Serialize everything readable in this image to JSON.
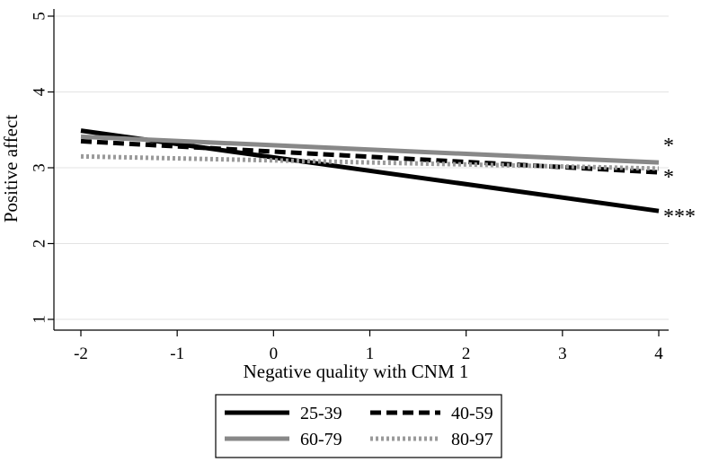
{
  "chart_data": {
    "type": "line",
    "title": "",
    "xlabel": "Negative quality with CNM 1",
    "ylabel": "Positive affect",
    "xlim": [
      -2,
      4
    ],
    "ylim": [
      1,
      5
    ],
    "xticks": [
      "-2",
      "-1",
      "0",
      "1",
      "2",
      "3",
      "4"
    ],
    "yticks": [
      "1",
      "2",
      "3",
      "4",
      "5"
    ],
    "grid": true,
    "legend_position": "bottom",
    "x": [
      -2,
      4
    ],
    "series": [
      {
        "name": "25-39",
        "values": [
          3.49,
          2.43
        ],
        "color": "#000000",
        "dash": "solid",
        "annotation": "***"
      },
      {
        "name": "40-59",
        "values": [
          3.35,
          2.94
        ],
        "color": "#000000",
        "dash": "dashed",
        "annotation": "*"
      },
      {
        "name": "60-79",
        "values": [
          3.41,
          3.07
        ],
        "color": "#888888",
        "dash": "solid",
        "annotation": "*"
      },
      {
        "name": "80-97",
        "values": [
          3.15,
          2.99
        ],
        "color": "#9a9a9a",
        "dash": "dotted",
        "annotation": ""
      }
    ]
  }
}
